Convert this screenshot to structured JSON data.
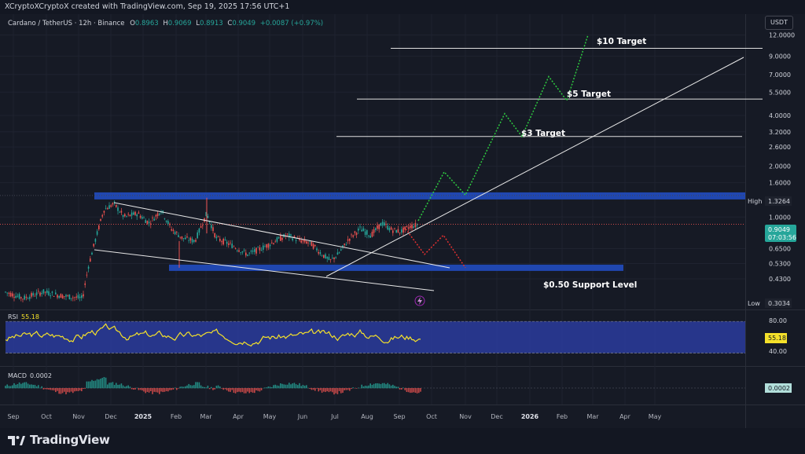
{
  "header": {
    "attribution": "XCryptoXCryptoX created with TradingView.com, Sep 19, 2025 17:56 UTC+1"
  },
  "symbol": {
    "name": "Cardano / TetherUS · 12h · Binance",
    "o_label": "O",
    "o": "0.8963",
    "h_label": "H",
    "h": "0.9069",
    "l_label": "L",
    "l": "0.8913",
    "c_label": "C",
    "c": "0.9049",
    "change": "+0.0087 (+0.97%)"
  },
  "currency_label": "USDT",
  "price_badge": {
    "price": "0.9049",
    "countdown": "07:03:56"
  },
  "high_badge": {
    "label": "High",
    "value": "1.3264"
  },
  "low_badge": {
    "label": "Low",
    "value": "0.3034"
  },
  "annotations": {
    "t10": "$10 Target",
    "t5": "$5 Target",
    "t3": "$3 Target",
    "support": "$0.50 Support Level"
  },
  "rsi": {
    "label": "RSI",
    "value": "55.18"
  },
  "macd": {
    "label": "MACD",
    "value": "0.0002"
  },
  "brand": "TradingView",
  "colors": {
    "up": "#26a69a",
    "down": "#ef5350",
    "zone": "#2047b0",
    "projection_up": "#2ecc40",
    "projection_down": "#e03030",
    "rsi_line": "#f5e12a",
    "rsi_band": "#2a3c9e",
    "badge_price": "#26a69a"
  },
  "chart_data": {
    "type": "line",
    "y_scale": "log",
    "y_ticks": [
      "12.0000",
      "9.0000",
      "7.0000",
      "5.5000",
      "4.0000",
      "3.2000",
      "2.6000",
      "2.0000",
      "1.6000",
      "1.3264",
      "1.0000",
      "0.9049",
      "0.6500",
      "0.5300",
      "0.4300",
      "0.3034"
    ],
    "x_ticks": [
      "Sep",
      "Oct",
      "Nov",
      "Dec",
      "2025",
      "Feb",
      "Mar",
      "Apr",
      "May",
      "Jun",
      "Jul",
      "Aug",
      "Sep",
      "Oct",
      "Nov",
      "Dec",
      "2026",
      "Feb",
      "Mar",
      "Apr",
      "May"
    ],
    "levels": [
      {
        "name": "$10 Target",
        "price": 10.0
      },
      {
        "name": "$5 Target",
        "price": 5.0
      },
      {
        "name": "$3 Target",
        "price": 3.0
      },
      {
        "name": "High",
        "price": 1.3264
      },
      {
        "name": "$0.50 Support Level",
        "price": 0.5
      }
    ],
    "projection_bull": [
      0.95,
      1.85,
      1.35,
      4.1,
      3.0,
      6.8,
      4.9,
      12.0
    ],
    "projection_bear": [
      0.85,
      0.6,
      0.78,
      0.5
    ],
    "rsi_ticks": [
      "80.00",
      "40.00"
    ],
    "rsi_current": 55.18,
    "macd_current": 0.0002
  }
}
